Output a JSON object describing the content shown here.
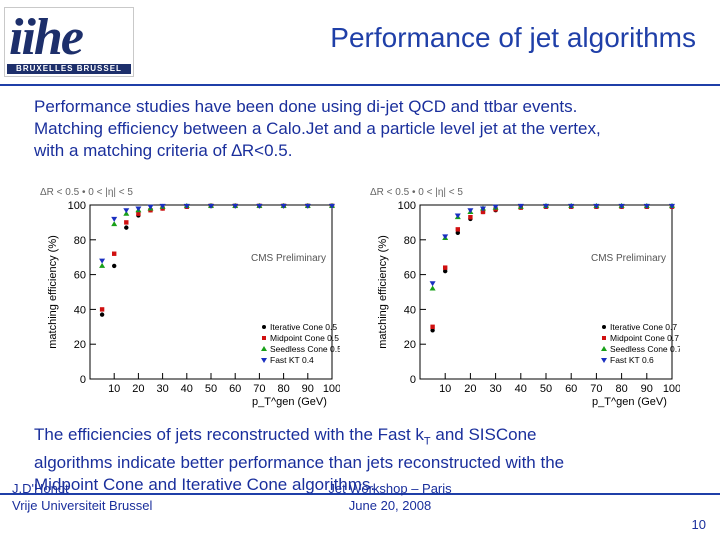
{
  "logo": {
    "text": "iihe",
    "subtext": "BRUXELLES BRUSSEL"
  },
  "title": "Performance of jet algorithms",
  "intro": [
    "Performance studies have been done using di-jet QCD and ttbar events.",
    "Matching efficiency between a Calo.Jet and a particle level jet at the vertex,",
    "with a matching criteria of ∆R<0.5."
  ],
  "chart_data": [
    {
      "type": "scatter",
      "title": "ΔR < 0.5 • 0 < |η| < 5",
      "watermark": "CMS Preliminary",
      "xlabel": "p_T^gen (GeV)",
      "ylabel": "matching efficiency (%)",
      "xlim": [
        0,
        100
      ],
      "ylim": [
        0,
        100
      ],
      "x_ticks": [
        "10",
        "20",
        "30",
        "40",
        "50",
        "60",
        "70",
        "80",
        "90",
        "100"
      ],
      "y_ticks": [
        "0",
        "20",
        "40",
        "60",
        "80",
        "100"
      ],
      "series": [
        {
          "name": "Iterative Cone 0.5",
          "color": "#000000",
          "marker": "circle",
          "x": [
            5,
            10,
            15,
            20,
            25,
            30,
            40,
            50,
            60,
            70,
            80,
            90,
            100
          ],
          "y": [
            37,
            65,
            87,
            94,
            97,
            98,
            99,
            99.5,
            99.5,
            99.5,
            99.5,
            99.5,
            99.5
          ]
        },
        {
          "name": "Midpoint Cone 0.5",
          "color": "#d01010",
          "marker": "square",
          "x": [
            5,
            10,
            15,
            20,
            25,
            30,
            40,
            50,
            60,
            70,
            80,
            90,
            100
          ],
          "y": [
            40,
            72,
            90,
            95,
            97,
            98,
            99,
            99.5,
            99.5,
            99.5,
            99.5,
            99.5,
            99.5
          ]
        },
        {
          "name": "Seedless Cone 0.5",
          "color": "#18a018",
          "marker": "triangle-up",
          "x": [
            5,
            10,
            15,
            20,
            25,
            30,
            40,
            50,
            60,
            70,
            80,
            90,
            100
          ],
          "y": [
            65,
            89,
            95,
            97,
            98,
            99,
            99.5,
            99.5,
            99.5,
            99.5,
            99.5,
            99.5,
            99.5
          ]
        },
        {
          "name": "Fast KT 0.4",
          "color": "#1a2fc0",
          "marker": "triangle-down",
          "x": [
            5,
            10,
            15,
            20,
            25,
            30,
            40,
            50,
            60,
            70,
            80,
            90,
            100
          ],
          "y": [
            68,
            92,
            97,
            98,
            99,
            99.5,
            99.5,
            99.5,
            99.5,
            99.5,
            99.5,
            99.5,
            99.5
          ]
        }
      ]
    },
    {
      "type": "scatter",
      "title": "ΔR < 0.5 • 0 < |η| < 5",
      "watermark": "CMS Preliminary",
      "xlabel": "p_T^gen (GeV)",
      "ylabel": "matching efficiency (%)",
      "xlim": [
        0,
        100
      ],
      "ylim": [
        0,
        100
      ],
      "x_ticks": [
        "10",
        "20",
        "30",
        "40",
        "50",
        "60",
        "70",
        "80",
        "90",
        "100"
      ],
      "y_ticks": [
        "0",
        "20",
        "40",
        "60",
        "80",
        "100"
      ],
      "series": [
        {
          "name": "Iterative Cone 0.7",
          "color": "#000000",
          "marker": "circle",
          "x": [
            5,
            10,
            15,
            20,
            25,
            30,
            40,
            50,
            60,
            70,
            80,
            90,
            100
          ],
          "y": [
            28,
            62,
            84,
            92,
            96,
            97,
            98.5,
            99,
            99,
            99,
            99,
            99,
            99
          ]
        },
        {
          "name": "Midpoint Cone 0.7",
          "color": "#d01010",
          "marker": "square",
          "x": [
            5,
            10,
            15,
            20,
            25,
            30,
            40,
            50,
            60,
            70,
            80,
            90,
            100
          ],
          "y": [
            30,
            64,
            86,
            93,
            96,
            97.5,
            98.5,
            99,
            99,
            99,
            99,
            99,
            99
          ]
        },
        {
          "name": "Seedless Cone 0.7",
          "color": "#18a018",
          "marker": "triangle-up",
          "x": [
            5,
            10,
            15,
            20,
            25,
            30,
            40,
            50,
            60,
            70,
            80,
            90,
            100
          ],
          "y": [
            52,
            81,
            93,
            96,
            98,
            98.5,
            99,
            99.5,
            99.5,
            99.5,
            99.5,
            99.5,
            99.5
          ]
        },
        {
          "name": "Fast KT 0.6",
          "color": "#1a2fc0",
          "marker": "triangle-down",
          "x": [
            5,
            10,
            15,
            20,
            25,
            30,
            40,
            50,
            60,
            70,
            80,
            90,
            100
          ],
          "y": [
            55,
            82,
            94,
            97,
            98,
            99,
            99.5,
            99.5,
            99.5,
            99.5,
            99.5,
            99.5,
            99.5
          ]
        }
      ]
    }
  ],
  "outro": [
    "The efficiencies of jets reconstructed with the Fast kT and SISCone",
    "algorithms indicate better performance than jets reconstructed with the",
    "Midpoint Cone and Iterative Cone algorithms."
  ],
  "footer": {
    "author": "J.D'Hondt",
    "institution": "Vrije Universiteit Brussel",
    "event": "Jet Workshop – Paris",
    "date": "June 20, 2008",
    "page": "10"
  }
}
